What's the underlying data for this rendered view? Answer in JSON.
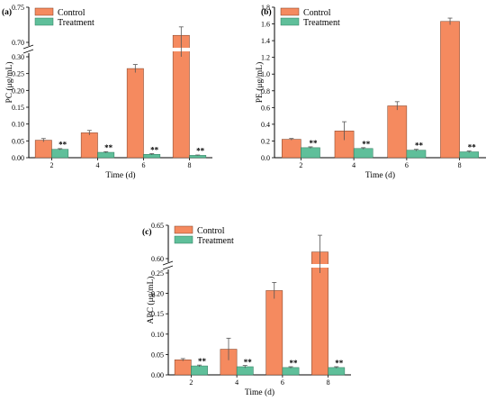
{
  "chart_data": [
    {
      "type": "bar",
      "panel_label": "(a)",
      "categories": [
        "2",
        "4",
        "6",
        "8"
      ],
      "xlabel": "Time (d)",
      "ylabel": "PC (μg/mL)",
      "ylim": [
        0,
        0.75
      ],
      "axis_break": true,
      "y_ticks": [
        "0.00",
        "0.05",
        "0.10",
        "0.15",
        "0.20",
        "0.25",
        "0.30",
        "0.70",
        "0.75"
      ],
      "series": [
        {
          "name": "Control",
          "values": [
            0.052,
            0.074,
            0.265,
            0.71
          ],
          "errors": [
            0.005,
            0.007,
            0.012,
            0.012
          ]
        },
        {
          "name": "Treatment",
          "values": [
            0.025,
            0.016,
            0.01,
            0.007
          ],
          "errors": [
            0.002,
            0.002,
            0.002,
            0.001
          ]
        }
      ],
      "significance": [
        "**",
        "**",
        "**",
        "**"
      ],
      "legend": "top-left"
    },
    {
      "type": "bar",
      "panel_label": "(b)",
      "categories": [
        "2",
        "4",
        "6",
        "8"
      ],
      "xlabel": "Time (d)",
      "ylabel": "PE (μg/mL)",
      "ylim": [
        0,
        1.8
      ],
      "axis_break": false,
      "y_ticks": [
        "0.0",
        "0.2",
        "0.4",
        "0.6",
        "0.8",
        "1.0",
        "1.2",
        "1.4",
        "1.6",
        "1.8"
      ],
      "series": [
        {
          "name": "Control",
          "values": [
            0.22,
            0.32,
            0.62,
            1.63
          ],
          "errors": [
            0.01,
            0.11,
            0.05,
            0.04
          ]
        },
        {
          "name": "Treatment",
          "values": [
            0.12,
            0.11,
            0.09,
            0.07
          ],
          "errors": [
            0.01,
            0.01,
            0.01,
            0.01
          ]
        }
      ],
      "significance": [
        "**",
        "**",
        "**",
        "**"
      ],
      "legend": "top-left"
    },
    {
      "type": "bar",
      "panel_label": "(c)",
      "categories": [
        "2",
        "4",
        "6",
        "8"
      ],
      "xlabel": "Time (d)",
      "ylabel": "APC (μg/mL)",
      "ylim": [
        0,
        0.65
      ],
      "axis_break": true,
      "y_ticks": [
        "0.00",
        "0.05",
        "0.10",
        "0.15",
        "0.20",
        "0.25",
        "0.60",
        "0.65"
      ],
      "series": [
        {
          "name": "Control",
          "values": [
            0.037,
            0.063,
            0.207,
            0.61
          ],
          "errors": [
            0.003,
            0.027,
            0.02,
            0.025
          ]
        },
        {
          "name": "Treatment",
          "values": [
            0.022,
            0.02,
            0.018,
            0.018
          ],
          "errors": [
            0.002,
            0.003,
            0.002,
            0.002
          ]
        }
      ],
      "significance": [
        "**",
        "**",
        "**",
        "**"
      ],
      "legend": "top-left"
    }
  ],
  "colors": {
    "control": "#f58a5f",
    "treatment": "#5fbf9a",
    "stroke": "#7a3b20",
    "treatment_stroke": "#2e7a5c"
  }
}
